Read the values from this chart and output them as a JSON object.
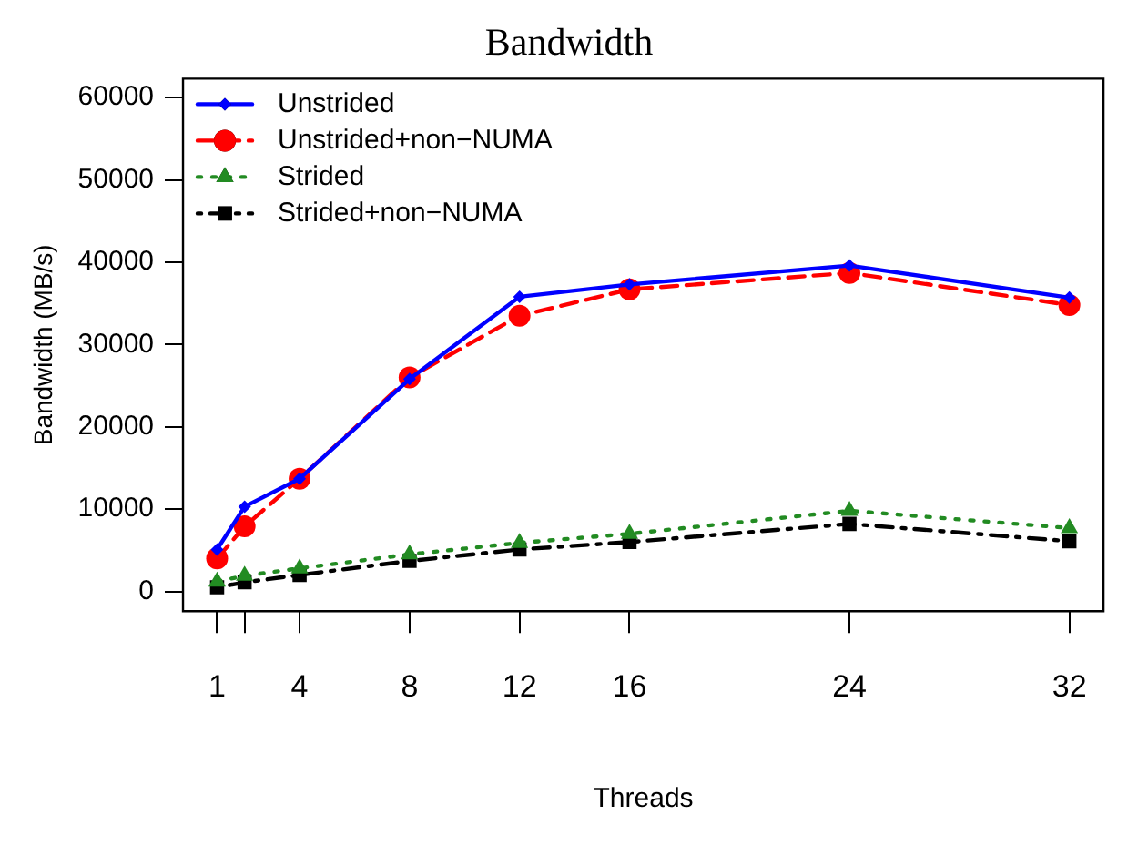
{
  "chart_data": {
    "type": "line",
    "title": "Bandwidth",
    "xlabel": "Threads",
    "ylabel": "Bandwidth (MB/s)",
    "x": [
      1,
      2,
      4,
      8,
      12,
      16,
      24,
      32
    ],
    "xlim": [
      -0.24,
      33.24
    ],
    "xticks": [
      1,
      {
        "value": 2,
        "label": null
      },
      4,
      8,
      12,
      16,
      24,
      32
    ],
    "ylim": [
      -2400,
      62300
    ],
    "yticks": [
      0,
      10000,
      20000,
      30000,
      40000,
      50000,
      60000
    ],
    "grid": false,
    "legend": "top left",
    "series": [
      {
        "name": "Unstrided",
        "color": "#0000ff",
        "marker": "diamond",
        "line_style": "solid",
        "values": [
          5100,
          10300,
          13700,
          25800,
          35800,
          37300,
          39600,
          35700
        ]
      },
      {
        "name": "Unstrided+non−NUMA",
        "color": "#ff0000",
        "marker": "circle",
        "line_style": "dashed",
        "values": [
          4000,
          7900,
          13700,
          26000,
          33500,
          36700,
          38700,
          34800
        ]
      },
      {
        "name": "Strided",
        "color": "#228b22",
        "marker": "triangle",
        "line_style": "dotted",
        "values": [
          1200,
          1900,
          2800,
          4500,
          5900,
          7000,
          9800,
          7700
        ]
      },
      {
        "name": "Strided+non−NUMA",
        "color": "#000000",
        "marker": "square",
        "line_style": "dashdot",
        "values": [
          500,
          1100,
          2000,
          3700,
          5100,
          6000,
          8200,
          6100
        ]
      }
    ]
  }
}
